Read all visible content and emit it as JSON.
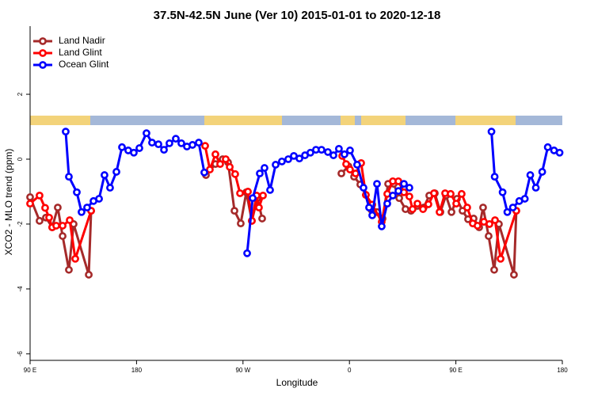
{
  "chart_data": {
    "type": "line",
    "title": "37.5N-42.5N June (Ver 10)   2015-01-01 to 2020-12-18",
    "x_label": "Longitude",
    "y_label": "XCO2 - MLO trend (ppm)",
    "xlim": [
      90,
      540
    ],
    "ylim": [
      -6.2,
      4.1
    ],
    "xticks": [
      {
        "value": 90,
        "label": "90 E"
      },
      {
        "value": 180,
        "label": "180"
      },
      {
        "value": 270,
        "label": "90 W"
      },
      {
        "value": 360,
        "label": "0"
      },
      {
        "value": 450,
        "label": "90 E"
      },
      {
        "value": 540,
        "label": "180"
      }
    ],
    "yticks": [
      2,
      0,
      -2,
      -4,
      -6
    ],
    "legend": "top-left",
    "series": [
      {
        "name": "Land Nadir",
        "color": "#a52a2a",
        "x": [
          90,
          98.0,
          103.4,
          108.7,
          113.4,
          117.5,
          122.8,
          126.8,
          139.6,
          141.6,
          null,
          238.7,
          246.7,
          252.8,
          257.4,
          262.8,
          268.1,
          272.8,
          277.5,
          282.2,
          286.2,
          null,
          353.2,
          359.2,
          363.9,
          369.2,
          373.9,
          378.6,
          383.3,
          388.0,
          392.7,
          397.4,
          402.1,
          407.4,
          412.1,
          417.5,
          422.8,
          427.5,
          432.2,
          436.9,
          441.6,
          446.3,
          450.9,
          455.6,
          460.3,
          465.0,
          469.7,
          473.0,
          477.7,
          482.4,
          486.4,
          499.1,
          501.1
        ],
        "values": [
          -1.17,
          -1.9,
          -1.8,
          -2.1,
          -1.49,
          -2.37,
          -3.41,
          -2.0,
          -3.56,
          -1.59,
          null,
          -0.49,
          -0.15,
          0.0,
          -0.1,
          -1.59,
          -1.98,
          -1.02,
          -1.9,
          -1.2,
          -1.83,
          null,
          -0.44,
          -0.22,
          -0.54,
          -0.78,
          -1.1,
          -1.56,
          -1.63,
          -1.83,
          -0.76,
          -0.76,
          -1.2,
          -1.54,
          -1.59,
          -1.44,
          -1.49,
          -1.12,
          -1.05,
          -1.63,
          -1.12,
          -1.63,
          -1.22,
          -1.59,
          -1.85,
          -1.83,
          -2.1,
          -1.49,
          -2.37,
          -3.41,
          -2.0,
          -3.56,
          -1.59
        ]
      },
      {
        "name": "Land Glint",
        "color": "#ff0000",
        "x": [
          90,
          98.0,
          102.7,
          106.1,
          108.7,
          112.1,
          117.5,
          123.5,
          128.2,
          141.6,
          null,
          238.0,
          242.0,
          246.7,
          250.7,
          255.4,
          258.8,
          263.4,
          267.5,
          274.2,
          277.5,
          281.5,
          283.5,
          286.9,
          null,
          353.9,
          357.2,
          360.5,
          365.2,
          369.9,
          373.9,
          379.3,
          387.3,
          392.0,
          396.7,
          401.4,
          406.1,
          410.7,
          413.4,
          417.5,
          422.2,
          426.8,
          431.5,
          436.2,
          440.9,
          445.6,
          450.3,
          454.9,
          459.6,
          464.3,
          468.3,
          473.7,
          478.4,
          483.1,
          487.8,
          501.1
        ],
        "values": [
          -1.37,
          -1.12,
          -1.5,
          -1.8,
          -2.1,
          -2.05,
          -2.05,
          -1.88,
          -3.07,
          -1.59,
          null,
          0.41,
          -0.32,
          0.15,
          -0.15,
          0.0,
          -0.24,
          -0.46,
          -1.05,
          -1.0,
          -1.9,
          -1.12,
          -1.49,
          -1.12,
          null,
          0.1,
          -0.15,
          -0.32,
          -0.44,
          -0.12,
          -1.1,
          -1.4,
          -1.93,
          -1.07,
          -0.68,
          -0.68,
          -1.02,
          -1.15,
          -1.54,
          -1.37,
          -1.54,
          -1.39,
          -1.05,
          -1.63,
          -1.05,
          -1.07,
          -1.37,
          -1.07,
          -1.49,
          -1.98,
          -2.05,
          -1.93,
          -2.0,
          -1.88,
          -3.07,
          -1.59
        ]
      },
      {
        "name": "Ocean Glint",
        "color": "#0000ff",
        "x": [
          120.1,
          122.8,
          129.5,
          133.5,
          138.2,
          143.6,
          148.3,
          152.9,
          157.6,
          163.0,
          167.7,
          173.0,
          177.7,
          182.4,
          188.4,
          193.1,
          198.5,
          203.2,
          207.8,
          213.2,
          217.9,
          222.6,
          227.3,
          232.6,
          237.3,
          null,
          273.5,
          278.2,
          284.2,
          288.2,
          292.9,
          297.6,
          302.9,
          308.3,
          313.0,
          317.7,
          322.4,
          327.0,
          331.7,
          336.4,
          341.8,
          346.5,
          351.1,
          355.8,
          360.5,
          366.5,
          371.9,
          376.6,
          379.3,
          383.3,
          387.3,
          392.0,
          396.7,
          401.4,
          406.1,
          410.7,
          null,
          480.1,
          482.8,
          489.5,
          493.5,
          498.2,
          503.6,
          508.3,
          512.9,
          517.6,
          523.0,
          527.7,
          533.0,
          537.7
        ],
        "values": [
          0.85,
          -0.54,
          -1.02,
          -1.63,
          -1.49,
          -1.29,
          -1.22,
          -0.49,
          -0.88,
          -0.39,
          0.37,
          0.27,
          0.2,
          0.34,
          0.8,
          0.51,
          0.46,
          0.29,
          0.49,
          0.63,
          0.49,
          0.39,
          0.44,
          0.51,
          -0.41,
          null,
          -2.9,
          -1.2,
          -0.44,
          -0.27,
          -0.95,
          -0.17,
          -0.07,
          0.0,
          0.1,
          0.02,
          0.12,
          0.2,
          0.29,
          0.29,
          0.22,
          0.12,
          0.32,
          0.15,
          0.27,
          -0.17,
          -0.88,
          -1.49,
          -1.73,
          -0.76,
          -2.07,
          -1.37,
          -1.12,
          -0.98,
          -0.76,
          -0.88,
          null,
          0.85,
          -0.54,
          -1.02,
          -1.63,
          -1.49,
          -1.29,
          -1.22,
          -0.49,
          -0.88,
          -0.39,
          0.37,
          0.27,
          0.2
        ]
      }
    ]
  }
}
